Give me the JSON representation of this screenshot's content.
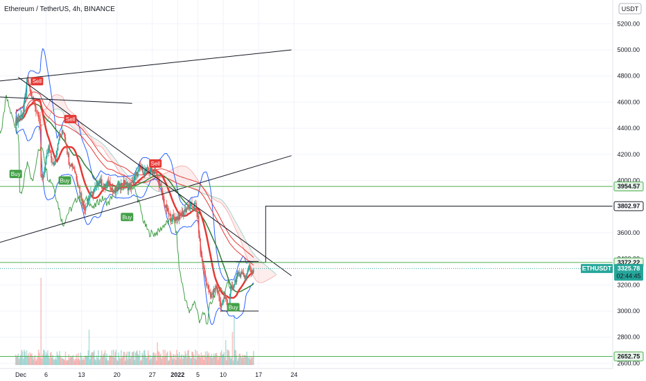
{
  "header": {
    "title": "Ethereum / TetherUS, 4h, BINANCE",
    "currency": "USDT"
  },
  "colors": {
    "up": "#26a69a",
    "down": "#ef5350",
    "price_line": "#26a69a",
    "support": "#4caf50",
    "band": "#2962ff",
    "trend": "#131722",
    "lag": "#43a047",
    "ma_red": "#e53935",
    "signal_buy": "#43a047",
    "signal_sell": "#e53935",
    "tag_dark": "#131722",
    "tag_green_bg": "#e8f5e9"
  },
  "chart_data": {
    "type": "candlestick",
    "symbol": "ETHUSDT",
    "exchange": "BINANCE",
    "interval": "4h",
    "ylim": [
      2600,
      5350
    ],
    "x_ticks": [
      {
        "label": "Dec",
        "day": 0
      },
      {
        "label": "6",
        "day": 5
      },
      {
        "label": "13",
        "day": 12
      },
      {
        "label": "20",
        "day": 19
      },
      {
        "label": "27",
        "day": 26
      },
      {
        "label": "2022",
        "day": 31
      },
      {
        "label": "5",
        "day": 35
      },
      {
        "label": "10",
        "day": 40
      },
      {
        "label": "17",
        "day": 47
      },
      {
        "label": "24",
        "day": 54
      }
    ],
    "y_ticks": [
      2600,
      2800,
      3000,
      3200,
      3400,
      3600,
      3800,
      4000,
      4200,
      4400,
      4600,
      4800,
      5000,
      5200
    ],
    "y_tick_labels": [
      "2600.00",
      "2800.00",
      "3000.00",
      "3200.00",
      "3400.00",
      "3600.00",
      "3800.00",
      "4000.00",
      "4200.00",
      "4400.00",
      "4600.00",
      "4800.00",
      "5000.00",
      "5200.00"
    ],
    "price_path": [
      [
        -1.0,
        4450
      ],
      [
        0.5,
        4520
      ],
      [
        1.3,
        4760
      ],
      [
        2.2,
        4640
      ],
      [
        3.0,
        4550
      ],
      [
        3.8,
        4480
      ],
      [
        4.0,
        4000
      ],
      [
        4.5,
        4050
      ],
      [
        5.5,
        4250
      ],
      [
        6.5,
        4100
      ],
      [
        7.5,
        4330
      ],
      [
        8.5,
        4380
      ],
      [
        9.5,
        4150
      ],
      [
        10.5,
        4100
      ],
      [
        11.5,
        3950
      ],
      [
        12.5,
        3780
      ],
      [
        13.5,
        3870
      ],
      [
        14.5,
        3920
      ],
      [
        15.5,
        4000
      ],
      [
        16.5,
        3950
      ],
      [
        17.5,
        3980
      ],
      [
        18.5,
        3900
      ],
      [
        19.5,
        3960
      ],
      [
        20.5,
        3980
      ],
      [
        21.5,
        3940
      ],
      [
        22.5,
        4020
      ],
      [
        23.5,
        4090
      ],
      [
        24.5,
        4070
      ],
      [
        25.5,
        4080
      ],
      [
        26.5,
        4070
      ],
      [
        27.5,
        3960
      ],
      [
        28.5,
        3800
      ],
      [
        29.5,
        3720
      ],
      [
        30.5,
        3710
      ],
      [
        31.5,
        3730
      ],
      [
        32.5,
        3780
      ],
      [
        33.5,
        3800
      ],
      [
        34.5,
        3810
      ],
      [
        35.0,
        3700
      ],
      [
        35.5,
        3450
      ],
      [
        36.5,
        3250
      ],
      [
        37.5,
        3100
      ],
      [
        38.5,
        3200
      ],
      [
        39.5,
        3050
      ],
      [
        40.5,
        3100
      ],
      [
        41.0,
        3010
      ],
      [
        41.5,
        3150
      ],
      [
        42.5,
        3250
      ],
      [
        43.5,
        3300
      ],
      [
        44.5,
        3260
      ],
      [
        45.0,
        3340
      ],
      [
        45.5,
        3310
      ],
      [
        46.0,
        3325.78
      ]
    ],
    "volume_spikes": [
      [
        4.0,
        420
      ],
      [
        13.5,
        170
      ],
      [
        27.0,
        110
      ],
      [
        40.5,
        120
      ],
      [
        41.8,
        160
      ],
      [
        42.2,
        240
      ]
    ],
    "trend_lines": [
      {
        "from": [
          -4.6,
          4760
        ],
        "to": [
          53.5,
          5000
        ]
      },
      {
        "from": [
          -4.6,
          3520
        ],
        "to": [
          53.5,
          4190
        ]
      },
      {
        "from": [
          -4.5,
          4640
        ],
        "to": [
          22.0,
          4590
        ]
      },
      {
        "from": [
          -0.5,
          4790
        ],
        "to": [
          53.5,
          3270
        ]
      },
      {
        "from": [
          36.0,
          3380
        ],
        "to": [
          47.0,
          3380
        ]
      },
      {
        "from": [
          39.5,
          3000
        ],
        "to": [
          47.0,
          3000
        ]
      }
    ],
    "price_tags": [
      {
        "value": 3954.57,
        "label": "3954.57",
        "style": "support"
      },
      {
        "value": 3802.97,
        "label": "3802.97",
        "style": "dark"
      },
      {
        "value": 3372.22,
        "label": "3372.22",
        "style": "support"
      },
      {
        "value": 2652.75,
        "label": "2652.75",
        "style": "support"
      }
    ],
    "last_price": {
      "symbol": "ETHUSDT",
      "value": 3325.78,
      "label": "3325.78",
      "countdown": "02:44:45"
    },
    "signals": [
      {
        "label": "Sell",
        "day": 3.2,
        "price": 4760,
        "side": "sell"
      },
      {
        "label": "Buy",
        "day": -1.0,
        "price": 4050,
        "side": "buy"
      },
      {
        "label": "Sell",
        "day": 9.8,
        "price": 4470,
        "side": "sell"
      },
      {
        "label": "Buy",
        "day": 8.7,
        "price": 4000,
        "side": "buy"
      },
      {
        "label": "Sell",
        "day": 26.6,
        "price": 4130,
        "side": "sell"
      },
      {
        "label": "Buy",
        "day": 21.0,
        "price": 3720,
        "side": "buy"
      },
      {
        "label": "Buy",
        "day": 42.0,
        "price": 3030,
        "side": "buy"
      }
    ]
  }
}
